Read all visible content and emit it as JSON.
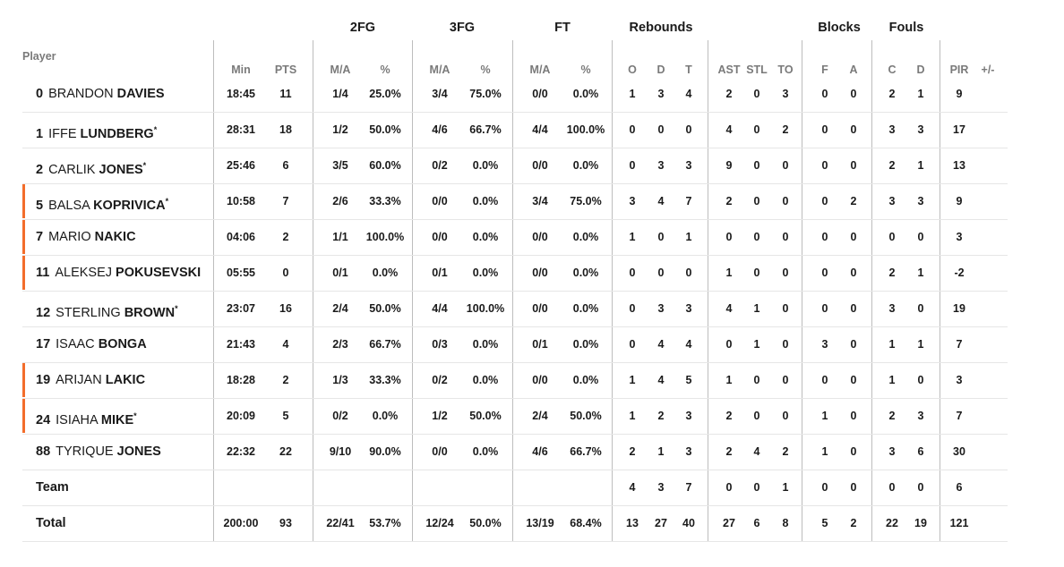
{
  "header": {
    "player_label": "Player",
    "groups": {
      "fg2": "2FG",
      "fg3": "3FG",
      "ft": "FT",
      "reb": "Rebounds",
      "blk": "Blocks",
      "fouls": "Fouls"
    },
    "columns": [
      "Min",
      "PTS",
      "M/A",
      "%",
      "M/A",
      "%",
      "M/A",
      "%",
      "O",
      "D",
      "T",
      "AST",
      "STL",
      "TO",
      "F",
      "A",
      "C",
      "D",
      "PIR",
      "+/-"
    ]
  },
  "players": [
    {
      "num": "0",
      "first": "BRANDON",
      "last": "DAVIES",
      "starter": false,
      "sub": false,
      "stats": [
        "18:45",
        "11",
        "1/4",
        "25.0%",
        "3/4",
        "75.0%",
        "0/0",
        "0.0%",
        "1",
        "3",
        "4",
        "2",
        "0",
        "3",
        "0",
        "0",
        "2",
        "1",
        "9",
        ""
      ]
    },
    {
      "num": "1",
      "first": "IFFE",
      "last": "LUNDBERG",
      "starter": true,
      "sub": false,
      "stats": [
        "28:31",
        "18",
        "1/2",
        "50.0%",
        "4/6",
        "66.7%",
        "4/4",
        "100.0%",
        "0",
        "0",
        "0",
        "4",
        "0",
        "2",
        "0",
        "0",
        "3",
        "3",
        "17",
        ""
      ]
    },
    {
      "num": "2",
      "first": "CARLIK",
      "last": "JONES",
      "starter": true,
      "sub": false,
      "stats": [
        "25:46",
        "6",
        "3/5",
        "60.0%",
        "0/2",
        "0.0%",
        "0/0",
        "0.0%",
        "0",
        "3",
        "3",
        "9",
        "0",
        "0",
        "0",
        "0",
        "2",
        "1",
        "13",
        ""
      ]
    },
    {
      "num": "5",
      "first": "BALSA",
      "last": "KOPRIVICA",
      "starter": true,
      "sub": true,
      "stats": [
        "10:58",
        "7",
        "2/6",
        "33.3%",
        "0/0",
        "0.0%",
        "3/4",
        "75.0%",
        "3",
        "4",
        "7",
        "2",
        "0",
        "0",
        "0",
        "2",
        "3",
        "3",
        "9",
        ""
      ]
    },
    {
      "num": "7",
      "first": "MARIO",
      "last": "NAKIC",
      "starter": false,
      "sub": true,
      "stats": [
        "04:06",
        "2",
        "1/1",
        "100.0%",
        "0/0",
        "0.0%",
        "0/0",
        "0.0%",
        "1",
        "0",
        "1",
        "0",
        "0",
        "0",
        "0",
        "0",
        "0",
        "0",
        "3",
        ""
      ]
    },
    {
      "num": "11",
      "first": "ALEKSEJ",
      "last": "POKUSEVSKI",
      "starter": false,
      "sub": true,
      "stats": [
        "05:55",
        "0",
        "0/1",
        "0.0%",
        "0/1",
        "0.0%",
        "0/0",
        "0.0%",
        "0",
        "0",
        "0",
        "1",
        "0",
        "0",
        "0",
        "0",
        "2",
        "1",
        "-2",
        ""
      ]
    },
    {
      "num": "12",
      "first": "STERLING",
      "last": "BROWN",
      "starter": true,
      "sub": false,
      "stats": [
        "23:07",
        "16",
        "2/4",
        "50.0%",
        "4/4",
        "100.0%",
        "0/0",
        "0.0%",
        "0",
        "3",
        "3",
        "4",
        "1",
        "0",
        "0",
        "0",
        "3",
        "0",
        "19",
        ""
      ]
    },
    {
      "num": "17",
      "first": "ISAAC",
      "last": "BONGA",
      "starter": false,
      "sub": false,
      "stats": [
        "21:43",
        "4",
        "2/3",
        "66.7%",
        "0/3",
        "0.0%",
        "0/1",
        "0.0%",
        "0",
        "4",
        "4",
        "0",
        "1",
        "0",
        "3",
        "0",
        "1",
        "1",
        "7",
        ""
      ]
    },
    {
      "num": "19",
      "first": "ARIJAN",
      "last": "LAKIC",
      "starter": false,
      "sub": true,
      "stats": [
        "18:28",
        "2",
        "1/3",
        "33.3%",
        "0/2",
        "0.0%",
        "0/0",
        "0.0%",
        "1",
        "4",
        "5",
        "1",
        "0",
        "0",
        "0",
        "0",
        "1",
        "0",
        "3",
        ""
      ]
    },
    {
      "num": "24",
      "first": "ISIAHA",
      "last": "MIKE",
      "starter": true,
      "sub": true,
      "stats": [
        "20:09",
        "5",
        "0/2",
        "0.0%",
        "1/2",
        "50.0%",
        "2/4",
        "50.0%",
        "1",
        "2",
        "3",
        "2",
        "0",
        "0",
        "1",
        "0",
        "2",
        "3",
        "7",
        ""
      ]
    },
    {
      "num": "88",
      "first": "TYRIQUE",
      "last": "JONES",
      "starter": false,
      "sub": false,
      "stats": [
        "22:32",
        "22",
        "9/10",
        "90.0%",
        "0/0",
        "0.0%",
        "4/6",
        "66.7%",
        "2",
        "1",
        "3",
        "2",
        "4",
        "2",
        "1",
        "0",
        "3",
        "6",
        "30",
        ""
      ]
    }
  ],
  "team": {
    "label": "Team",
    "stats": [
      "",
      "",
      "",
      "",
      "",
      "",
      "",
      "",
      "4",
      "3",
      "7",
      "0",
      "0",
      "1",
      "0",
      "0",
      "0",
      "0",
      "6",
      ""
    ]
  },
  "total": {
    "label": "Total",
    "stats": [
      "200:00",
      "93",
      "22/41",
      "53.7%",
      "12/24",
      "50.0%",
      "13/19",
      "68.4%",
      "13",
      "27",
      "40",
      "27",
      "6",
      "8",
      "5",
      "2",
      "22",
      "19",
      "121",
      ""
    ]
  },
  "colors": {
    "sub_marker": "#f36d2b",
    "header_text": "#7a7a7a",
    "divider": "#bdbdbd"
  }
}
